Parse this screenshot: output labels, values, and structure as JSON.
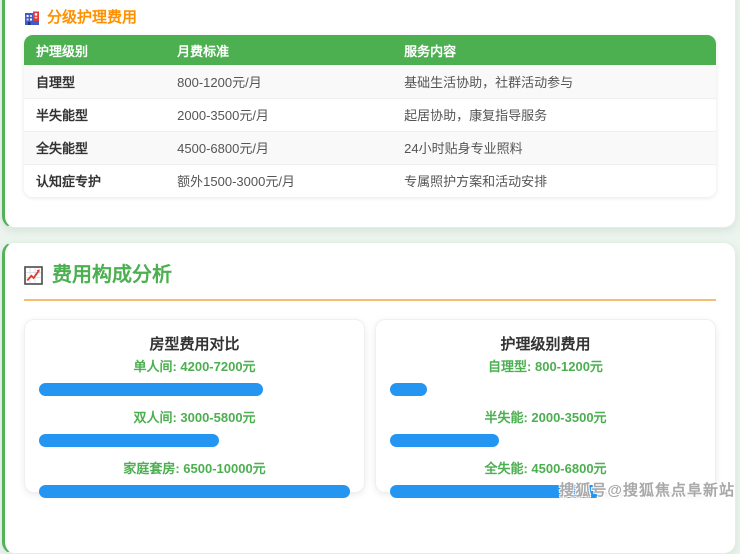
{
  "colors": {
    "page_background": "#ecf4ee",
    "card_accent_green": "#55b25b",
    "table_header_green": "#4caf50",
    "section1_title_orange": "#ff9100",
    "analysis_title_green": "#4caf50",
    "underline_orange": "#f6bd73",
    "bar_blue": "#2595f2",
    "label_green": "#4caf50"
  },
  "section1": {
    "icon": "building-icon",
    "title": "分级护理费用",
    "table": {
      "headers": [
        "护理级别",
        "月费标准",
        "服务内容"
      ],
      "rows": [
        [
          "自理型",
          "800-1200元/月",
          "基础生活协助，社群活动参与"
        ],
        [
          "半失能型",
          "2000-3500元/月",
          "起居协助，康复指导服务"
        ],
        [
          "全失能型",
          "4500-6800元/月",
          "24小时贴身专业照料"
        ],
        [
          "认知症专护",
          "额外1500-3000元/月",
          "专属照护方案和活动安排"
        ]
      ]
    }
  },
  "section2": {
    "icon": "chart-increasing-icon",
    "title": "费用构成分析",
    "charts": [
      {
        "title": "房型费用对比",
        "items": [
          {
            "label": "单人间: 4200-7200元",
            "width_pct": 72
          },
          {
            "label": "双人间: 3000-5800元",
            "width_pct": 58
          },
          {
            "label": "家庭套房: 6500-10000元",
            "width_pct": 100
          }
        ]
      },
      {
        "title": "护理级别费用",
        "items": [
          {
            "label": "自理型: 800-1200元",
            "width_pct": 12
          },
          {
            "label": "半失能: 2000-3500元",
            "width_pct": 35
          },
          {
            "label": "全失能: 4500-6800元",
            "width_pct": 68
          }
        ]
      }
    ]
  },
  "watermark": "搜狐号@搜狐焦点阜新站",
  "chart_data": [
    {
      "type": "bar",
      "title": "房型费用对比",
      "categories": [
        "单人间",
        "双人间",
        "家庭套房"
      ],
      "ranges_yuan": [
        [
          4200,
          7200
        ],
        [
          3000,
          5800
        ],
        [
          6500,
          10000
        ]
      ],
      "bar_values": [
        7200,
        5800,
        10000
      ],
      "bar_scale_max": 10000,
      "orientation": "horizontal",
      "bar_color": "#2595f2",
      "labels": [
        "单人间: 4200-7200元",
        "双人间: 3000-5800元",
        "家庭套房: 6500-10000元"
      ]
    },
    {
      "type": "bar",
      "title": "护理级别费用",
      "categories": [
        "自理型",
        "半失能",
        "全失能"
      ],
      "ranges_yuan": [
        [
          800,
          1200
        ],
        [
          2000,
          3500
        ],
        [
          4500,
          6800
        ]
      ],
      "bar_values": [
        1200,
        3500,
        6800
      ],
      "bar_scale_max": 10000,
      "orientation": "horizontal",
      "bar_color": "#2595f2",
      "labels": [
        "自理型: 800-1200元",
        "半失能: 2000-3500元",
        "全失能: 4500-6800元"
      ]
    }
  ]
}
